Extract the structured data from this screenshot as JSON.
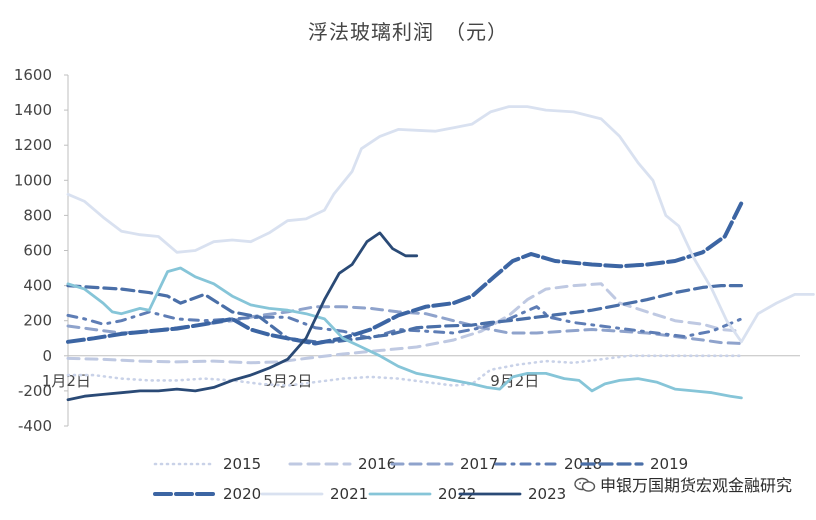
{
  "chart_data": {
    "type": "line",
    "title": "浮法玻璃利润　（元）",
    "xlabel": "",
    "ylabel": "",
    "x_day_range": [
      1,
      366
    ],
    "x_ticks": [
      {
        "label": "1月2日",
        "day": 2
      },
      {
        "label": "5月2日",
        "day": 122
      },
      {
        "label": "9月2日",
        "day": 245
      }
    ],
    "ylim": [
      -400,
      1600
    ],
    "y_ticks": [
      -400,
      -200,
      0,
      200,
      400,
      600,
      800,
      1000,
      1200,
      1400,
      1600
    ],
    "grid": false,
    "legend_position": "bottom",
    "series": [
      {
        "name": "2015",
        "color": "#C9D2E8",
        "dash": "1 5",
        "width": 2.6,
        "points": [
          [
            1,
            -110
          ],
          [
            15,
            -110
          ],
          [
            30,
            -130
          ],
          [
            45,
            -140
          ],
          [
            60,
            -140
          ],
          [
            75,
            -130
          ],
          [
            90,
            -140
          ],
          [
            105,
            -160
          ],
          [
            120,
            -170
          ],
          [
            135,
            -150
          ],
          [
            150,
            -130
          ],
          [
            165,
            -120
          ],
          [
            180,
            -130
          ],
          [
            195,
            -150
          ],
          [
            210,
            -170
          ],
          [
            220,
            -160
          ],
          [
            230,
            -80
          ],
          [
            245,
            -50
          ],
          [
            260,
            -30
          ],
          [
            275,
            -40
          ],
          [
            290,
            -20
          ],
          [
            305,
            0
          ],
          [
            320,
            0
          ],
          [
            335,
            0
          ],
          [
            350,
            0
          ],
          [
            366,
            0
          ]
        ]
      },
      {
        "name": "2016",
        "color": "#BFC9E2",
        "dash": "11 7",
        "width": 3,
        "points": [
          [
            1,
            -15
          ],
          [
            20,
            -20
          ],
          [
            40,
            -30
          ],
          [
            60,
            -35
          ],
          [
            80,
            -30
          ],
          [
            100,
            -40
          ],
          [
            115,
            -35
          ],
          [
            130,
            -15
          ],
          [
            150,
            10
          ],
          [
            170,
            30
          ],
          [
            190,
            50
          ],
          [
            210,
            90
          ],
          [
            225,
            140
          ],
          [
            240,
            230
          ],
          [
            250,
            320
          ],
          [
            260,
            380
          ],
          [
            275,
            400
          ],
          [
            290,
            410
          ],
          [
            300,
            300
          ],
          [
            315,
            250
          ],
          [
            330,
            200
          ],
          [
            345,
            180
          ],
          [
            355,
            150
          ],
          [
            366,
            140
          ]
        ]
      },
      {
        "name": "2017",
        "color": "#8FA3CC",
        "dash": "11 7",
        "width": 3,
        "points": [
          [
            1,
            170
          ],
          [
            15,
            150
          ],
          [
            30,
            130
          ],
          [
            45,
            140
          ],
          [
            60,
            160
          ],
          [
            75,
            180
          ],
          [
            90,
            200
          ],
          [
            105,
            230
          ],
          [
            120,
            250
          ],
          [
            135,
            280
          ],
          [
            150,
            280
          ],
          [
            165,
            270
          ],
          [
            180,
            250
          ],
          [
            195,
            240
          ],
          [
            210,
            200
          ],
          [
            225,
            160
          ],
          [
            240,
            130
          ],
          [
            255,
            130
          ],
          [
            270,
            140
          ],
          [
            285,
            150
          ],
          [
            300,
            140
          ],
          [
            315,
            130
          ],
          [
            330,
            110
          ],
          [
            345,
            90
          ],
          [
            355,
            75
          ],
          [
            366,
            70
          ]
        ]
      },
      {
        "name": "2018",
        "color": "#5E7DB5",
        "dash": "9 7 2 7",
        "width": 3,
        "points": [
          [
            1,
            230
          ],
          [
            10,
            210
          ],
          [
            20,
            180
          ],
          [
            30,
            200
          ],
          [
            45,
            250
          ],
          [
            60,
            210
          ],
          [
            75,
            200
          ],
          [
            90,
            210
          ],
          [
            105,
            220
          ],
          [
            120,
            220
          ],
          [
            135,
            160
          ],
          [
            150,
            140
          ],
          [
            165,
            100
          ],
          [
            180,
            150
          ],
          [
            195,
            140
          ],
          [
            210,
            130
          ],
          [
            225,
            160
          ],
          [
            240,
            210
          ],
          [
            255,
            280
          ],
          [
            262,
            220
          ],
          [
            275,
            190
          ],
          [
            290,
            170
          ],
          [
            305,
            150
          ],
          [
            320,
            130
          ],
          [
            335,
            110
          ],
          [
            350,
            140
          ],
          [
            366,
            210
          ]
        ]
      },
      {
        "name": "2019",
        "color": "#4A6FA8",
        "dash": "12 6",
        "width": 3.2,
        "points": [
          [
            1,
            400
          ],
          [
            15,
            390
          ],
          [
            30,
            380
          ],
          [
            45,
            360
          ],
          [
            55,
            340
          ],
          [
            62,
            300
          ],
          [
            75,
            350
          ],
          [
            90,
            250
          ],
          [
            105,
            220
          ],
          [
            120,
            100
          ],
          [
            135,
            80
          ],
          [
            145,
            80
          ],
          [
            160,
            100
          ],
          [
            175,
            120
          ],
          [
            190,
            160
          ],
          [
            205,
            170
          ],
          [
            220,
            175
          ],
          [
            230,
            190
          ],
          [
            240,
            200
          ],
          [
            255,
            220
          ],
          [
            270,
            240
          ],
          [
            285,
            260
          ],
          [
            300,
            290
          ],
          [
            315,
            320
          ],
          [
            330,
            360
          ],
          [
            345,
            390
          ],
          [
            355,
            400
          ],
          [
            366,
            400
          ]
        ]
      },
      {
        "name": "2020",
        "color": "#3C65A3",
        "dash": "16 5",
        "width": 4,
        "points": [
          [
            1,
            80
          ],
          [
            15,
            100
          ],
          [
            30,
            125
          ],
          [
            45,
            140
          ],
          [
            60,
            155
          ],
          [
            75,
            180
          ],
          [
            90,
            210
          ],
          [
            100,
            150
          ],
          [
            110,
            120
          ],
          [
            122,
            95
          ],
          [
            135,
            70
          ],
          [
            150,
            100
          ],
          [
            165,
            150
          ],
          [
            180,
            230
          ],
          [
            195,
            280
          ],
          [
            210,
            300
          ],
          [
            220,
            340
          ],
          [
            232,
            450
          ],
          [
            242,
            540
          ],
          [
            252,
            580
          ],
          [
            265,
            540
          ],
          [
            285,
            520
          ],
          [
            300,
            510
          ],
          [
            315,
            520
          ],
          [
            330,
            540
          ],
          [
            345,
            590
          ],
          [
            357,
            680
          ],
          [
            366,
            870
          ]
        ]
      },
      {
        "name": "2021",
        "color": "#D9E1F0",
        "dash": "",
        "width": 2.8,
        "points": [
          [
            1,
            920
          ],
          [
            10,
            880
          ],
          [
            20,
            790
          ],
          [
            30,
            710
          ],
          [
            40,
            690
          ],
          [
            50,
            680
          ],
          [
            60,
            590
          ],
          [
            70,
            600
          ],
          [
            80,
            650
          ],
          [
            90,
            660
          ],
          [
            100,
            650
          ],
          [
            110,
            700
          ],
          [
            120,
            770
          ],
          [
            130,
            780
          ],
          [
            140,
            830
          ],
          [
            145,
            920
          ],
          [
            155,
            1050
          ],
          [
            160,
            1180
          ],
          [
            170,
            1250
          ],
          [
            180,
            1290
          ],
          [
            190,
            1285
          ],
          [
            200,
            1280
          ],
          [
            210,
            1300
          ],
          [
            220,
            1320
          ],
          [
            230,
            1390
          ],
          [
            240,
            1420
          ],
          [
            250,
            1420
          ],
          [
            260,
            1400
          ],
          [
            275,
            1390
          ],
          [
            290,
            1350
          ],
          [
            300,
            1250
          ],
          [
            310,
            1100
          ],
          [
            318,
            1000
          ],
          [
            325,
            800
          ],
          [
            332,
            740
          ],
          [
            340,
            560
          ],
          [
            350,
            380
          ],
          [
            358,
            200
          ],
          [
            366,
            80
          ],
          [
            375,
            240
          ],
          [
            385,
            300
          ],
          [
            395,
            350
          ],
          [
            405,
            350
          ]
        ]
      },
      {
        "name": "2022",
        "color": "#86C5D8",
        "dash": "",
        "width": 2.8,
        "points": [
          [
            1,
            410
          ],
          [
            10,
            380
          ],
          [
            20,
            300
          ],
          [
            25,
            250
          ],
          [
            30,
            240
          ],
          [
            40,
            270
          ],
          [
            45,
            260
          ],
          [
            55,
            480
          ],
          [
            62,
            500
          ],
          [
            70,
            450
          ],
          [
            80,
            410
          ],
          [
            90,
            340
          ],
          [
            100,
            290
          ],
          [
            110,
            270
          ],
          [
            120,
            260
          ],
          [
            130,
            240
          ],
          [
            140,
            210
          ],
          [
            150,
            100
          ],
          [
            160,
            50
          ],
          [
            170,
            0
          ],
          [
            180,
            -60
          ],
          [
            190,
            -100
          ],
          [
            200,
            -120
          ],
          [
            210,
            -140
          ],
          [
            220,
            -160
          ],
          [
            228,
            -180
          ],
          [
            235,
            -190
          ],
          [
            242,
            -120
          ],
          [
            250,
            -100
          ],
          [
            260,
            -100
          ],
          [
            270,
            -130
          ],
          [
            278,
            -140
          ],
          [
            285,
            -200
          ],
          [
            292,
            -160
          ],
          [
            300,
            -140
          ],
          [
            310,
            -130
          ],
          [
            320,
            -150
          ],
          [
            330,
            -190
          ],
          [
            340,
            -200
          ],
          [
            350,
            -210
          ],
          [
            360,
            -230
          ],
          [
            366,
            -240
          ]
        ]
      },
      {
        "name": "2023",
        "color": "#2A4A76",
        "dash": "",
        "width": 2.8,
        "points": [
          [
            1,
            -250
          ],
          [
            10,
            -230
          ],
          [
            20,
            -220
          ],
          [
            30,
            -210
          ],
          [
            40,
            -200
          ],
          [
            50,
            -200
          ],
          [
            60,
            -190
          ],
          [
            70,
            -200
          ],
          [
            80,
            -180
          ],
          [
            90,
            -140
          ],
          [
            100,
            -110
          ],
          [
            110,
            -70
          ],
          [
            120,
            -20
          ],
          [
            130,
            100
          ],
          [
            140,
            320
          ],
          [
            148,
            470
          ],
          [
            155,
            520
          ],
          [
            163,
            650
          ],
          [
            170,
            700
          ],
          [
            177,
            610
          ],
          [
            184,
            570
          ],
          [
            190,
            570
          ]
        ]
      }
    ]
  },
  "watermark": {
    "text": "申银万国期货宏观金融研究",
    "icon": "chat-bubble-icon"
  }
}
